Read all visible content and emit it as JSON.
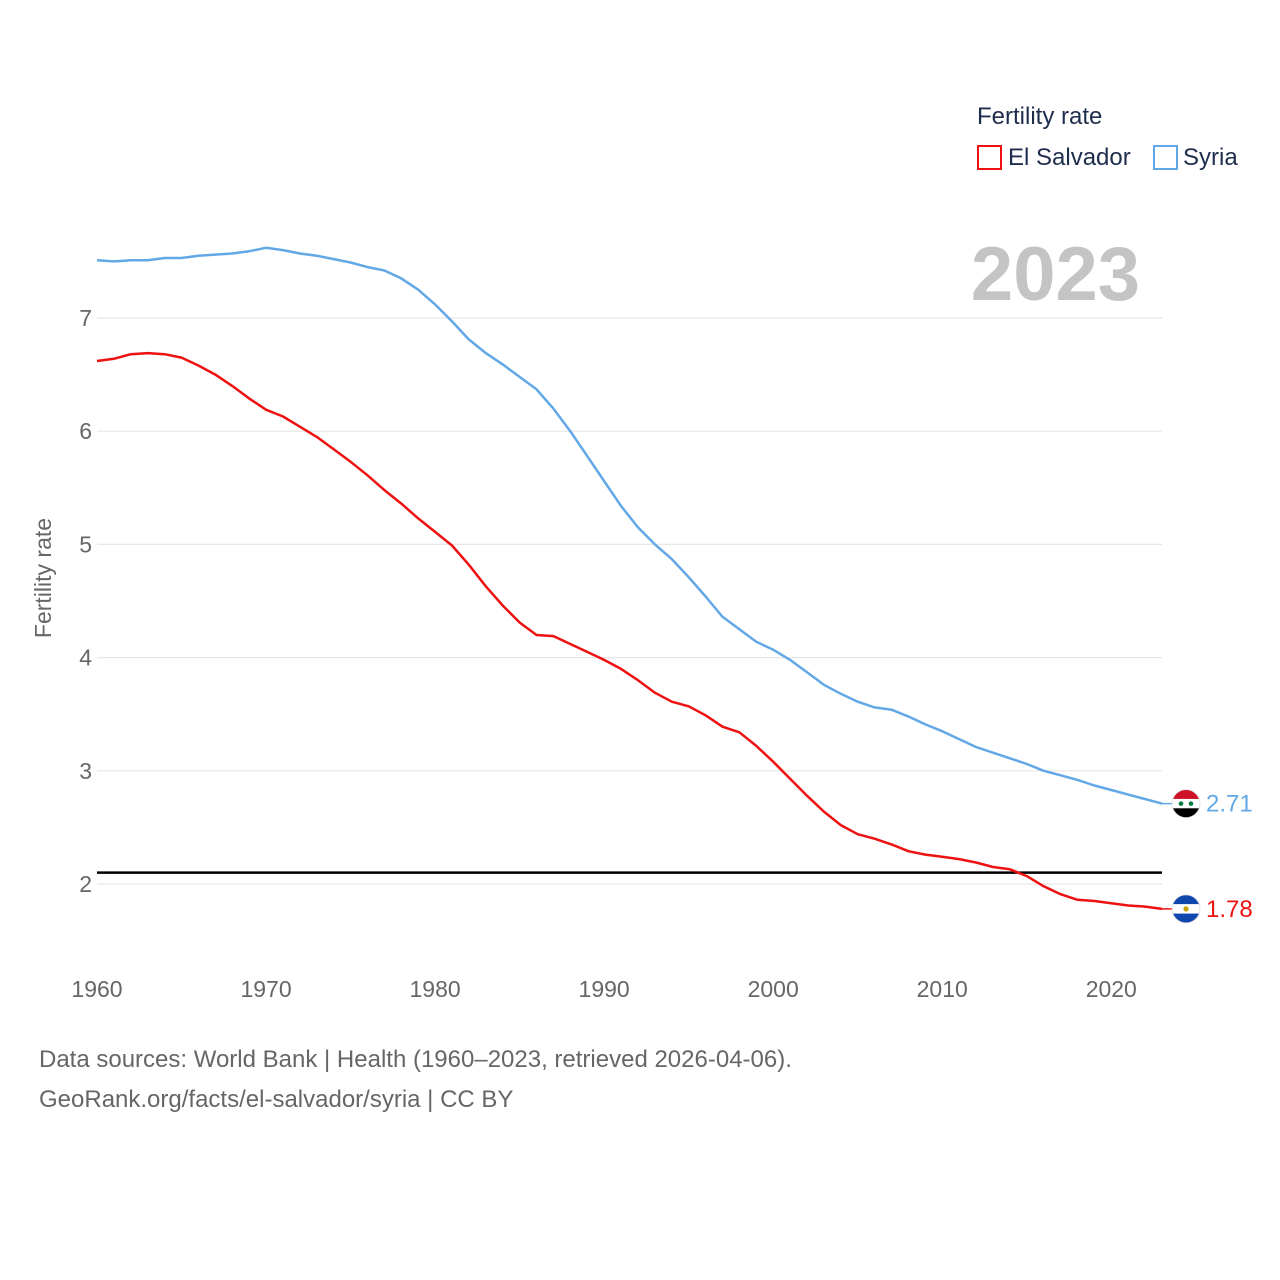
{
  "chart_data": {
    "type": "line",
    "title": "",
    "year_label": "2023",
    "ylabel": "Fertility rate",
    "xlabel": "",
    "xlim": [
      1960,
      2023
    ],
    "ylim": [
      1.3,
      8.0
    ],
    "x_ticks": [
      "1960",
      "1970",
      "1980",
      "1990",
      "2000",
      "2010",
      "2020"
    ],
    "y_ticks": [
      "2",
      "3",
      "4",
      "5",
      "6",
      "7"
    ],
    "reference_line": 2.1,
    "legend": {
      "title": "Fertility rate",
      "position": "top-right"
    },
    "x": [
      1960,
      1961,
      1962,
      1963,
      1964,
      1965,
      1966,
      1967,
      1968,
      1969,
      1970,
      1971,
      1972,
      1973,
      1974,
      1975,
      1976,
      1977,
      1978,
      1979,
      1980,
      1981,
      1982,
      1983,
      1984,
      1985,
      1986,
      1987,
      1988,
      1989,
      1990,
      1991,
      1992,
      1993,
      1994,
      1995,
      1996,
      1997,
      1998,
      1999,
      2000,
      2001,
      2002,
      2003,
      2004,
      2005,
      2006,
      2007,
      2008,
      2009,
      2010,
      2011,
      2012,
      2013,
      2014,
      2015,
      2016,
      2017,
      2018,
      2019,
      2020,
      2021,
      2022,
      2023
    ],
    "series": [
      {
        "name": "El Salvador",
        "color": "#ee1111",
        "end_label": "1.78",
        "flag": "el-salvador-flag-icon",
        "values": [
          6.62,
          6.64,
          6.68,
          6.69,
          6.68,
          6.65,
          6.58,
          6.5,
          6.4,
          6.29,
          6.19,
          6.13,
          6.04,
          5.95,
          5.84,
          5.73,
          5.61,
          5.48,
          5.36,
          5.23,
          5.11,
          4.99,
          4.82,
          4.63,
          4.46,
          4.31,
          4.2,
          4.19,
          4.12,
          4.05,
          3.98,
          3.9,
          3.8,
          3.69,
          3.61,
          3.57,
          3.49,
          3.39,
          3.34,
          3.22,
          3.08,
          2.93,
          2.78,
          2.64,
          2.52,
          2.44,
          2.4,
          2.35,
          2.29,
          2.26,
          2.24,
          2.22,
          2.19,
          2.15,
          2.13,
          2.07,
          1.98,
          1.91,
          1.86,
          1.85,
          1.83,
          1.81,
          1.8,
          1.78
        ]
      },
      {
        "name": "Syria",
        "color": "#62a8e6",
        "end_label": "2.71",
        "flag": "syria-flag-icon",
        "values": [
          7.51,
          7.5,
          7.51,
          7.51,
          7.53,
          7.53,
          7.55,
          7.56,
          7.57,
          7.59,
          7.62,
          7.6,
          7.57,
          7.55,
          7.52,
          7.49,
          7.45,
          7.42,
          7.35,
          7.25,
          7.12,
          6.97,
          6.81,
          6.69,
          6.59,
          6.48,
          6.37,
          6.2,
          6.0,
          5.78,
          5.56,
          5.34,
          5.15,
          5.0,
          4.87,
          4.71,
          4.54,
          4.36,
          4.25,
          4.14,
          4.07,
          3.98,
          3.87,
          3.76,
          3.68,
          3.61,
          3.56,
          3.54,
          3.48,
          3.41,
          3.35,
          3.28,
          3.21,
          3.16,
          3.11,
          3.06,
          3.0,
          2.96,
          2.92,
          2.87,
          2.83,
          2.79,
          2.75,
          2.71
        ]
      }
    ]
  },
  "source": {
    "line1": "Data sources: World Bank | Health (1960–2023, retrieved 2026-04-06).",
    "line2": "GeoRank.org/facts/el-salvador/syria | CC BY"
  }
}
